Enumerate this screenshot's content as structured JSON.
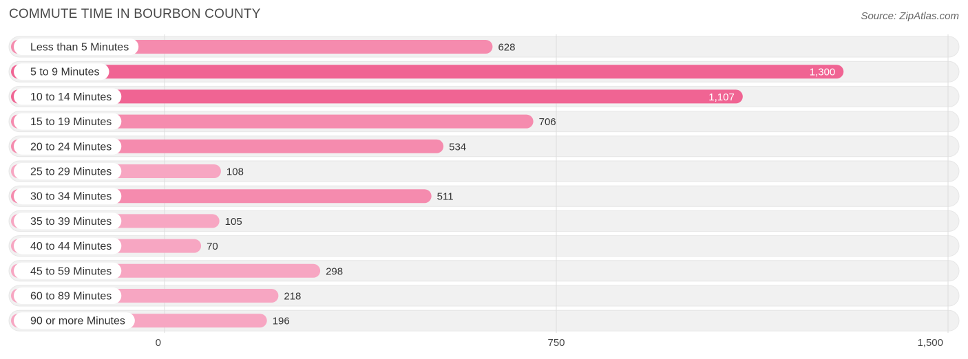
{
  "title": "COMMUTE TIME IN BOURBON COUNTY",
  "source": "Source: ZipAtlas.com",
  "colors": {
    "bar_high": "#f06493",
    "bar_mid": "#f58bae",
    "bar_low": "#f7a6c2",
    "track": "#f1f1f1",
    "grid": "#dddddd"
  },
  "chart_data": {
    "type": "bar",
    "orientation": "horizontal",
    "categories": [
      "Less than 5 Minutes",
      "5 to 9 Minutes",
      "10 to 14 Minutes",
      "15 to 19 Minutes",
      "20 to 24 Minutes",
      "25 to 29 Minutes",
      "30 to 34 Minutes",
      "35 to 39 Minutes",
      "40 to 44 Minutes",
      "45 to 59 Minutes",
      "60 to 89 Minutes",
      "90 or more Minutes"
    ],
    "values": [
      628,
      1300,
      1107,
      706,
      534,
      108,
      511,
      105,
      70,
      298,
      218,
      196
    ],
    "value_labels": [
      "628",
      "1,300",
      "1,107",
      "706",
      "534",
      "108",
      "511",
      "105",
      "70",
      "298",
      "218",
      "196"
    ],
    "xlim": [
      0,
      1500
    ],
    "xticks": [
      0,
      750,
      1500
    ],
    "xtick_labels": [
      "0",
      "750",
      "1,500"
    ],
    "grid": true,
    "legend": "none"
  }
}
